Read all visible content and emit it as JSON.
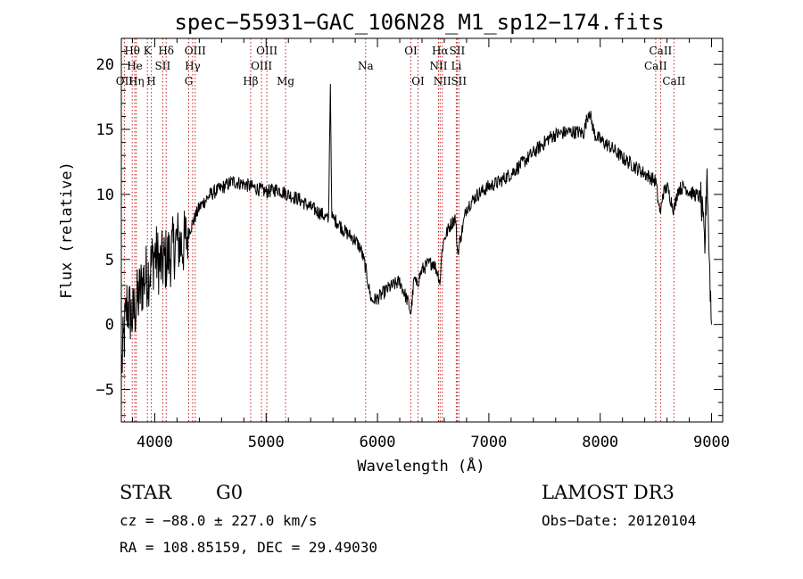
{
  "chart_data": {
    "type": "line",
    "title": "spec−55931−GAC_106N28_M1_sp12−174.fits",
    "xlabel": "Wavelength (Å)",
    "ylabel": "Flux (relative)",
    "xlim": [
      3700,
      9100
    ],
    "ylim": [
      -7.5,
      22
    ],
    "xticks": [
      4000,
      5000,
      6000,
      7000,
      8000,
      9000
    ],
    "yticks": [
      -5,
      0,
      5,
      10,
      15,
      20
    ],
    "grid": false,
    "series": [
      {
        "name": "flux",
        "x": [
          3700,
          3750,
          3800,
          3850,
          3900,
          3950,
          4000,
          4050,
          4100,
          4150,
          4200,
          4250,
          4300,
          4350,
          4400,
          4450,
          4500,
          4600,
          4700,
          4800,
          4900,
          5000,
          5100,
          5200,
          5300,
          5400,
          5500,
          5560,
          5577,
          5590,
          5650,
          5700,
          5800,
          5850,
          5890,
          5930,
          5950,
          6000,
          6100,
          6200,
          6280,
          6300,
          6330,
          6350,
          6400,
          6450,
          6500,
          6540,
          6563,
          6580,
          6600,
          6650,
          6700,
          6720,
          6800,
          6900,
          7000,
          7100,
          7200,
          7300,
          7400,
          7500,
          7550,
          7600,
          7700,
          7800,
          7850,
          7900,
          7950,
          8000,
          8100,
          8200,
          8300,
          8400,
          8500,
          8520,
          8542,
          8560,
          8600,
          8662,
          8700,
          8760,
          8800,
          8850,
          8900,
          8940,
          8960,
          8980,
          9000
        ],
        "y": [
          -3.5,
          1.5,
          0.5,
          2.0,
          3.5,
          4.0,
          5.5,
          4.5,
          5.0,
          5.5,
          6.5,
          6.0,
          7.0,
          8.0,
          9.0,
          9.5,
          10.0,
          10.5,
          11.0,
          10.8,
          10.5,
          10.2,
          10.4,
          10.0,
          9.6,
          9.0,
          8.5,
          8.0,
          18.5,
          8.2,
          7.8,
          7.2,
          6.5,
          5.8,
          4.5,
          2.5,
          1.8,
          2.0,
          2.8,
          3.3,
          1.6,
          0.8,
          3.6,
          3.0,
          4.2,
          4.6,
          4.8,
          4.0,
          3.2,
          5.8,
          6.6,
          7.6,
          8.2,
          5.5,
          9.0,
          10.0,
          10.6,
          11.0,
          11.6,
          12.4,
          13.2,
          14.0,
          14.4,
          14.6,
          14.8,
          14.8,
          14.7,
          16.5,
          14.6,
          14.2,
          13.6,
          12.8,
          12.2,
          11.6,
          11.0,
          9.5,
          8.5,
          10.0,
          10.6,
          8.8,
          10.4,
          10.6,
          10.2,
          10.0,
          9.8,
          6.0,
          12.0,
          5.0,
          0.0
        ]
      }
    ],
    "line_labels": [
      {
        "name": "Hθ",
        "wave": 3798,
        "row": 0
      },
      {
        "name": "OII",
        "wave": 3727,
        "row": 2
      },
      {
        "name": "He",
        "wave": 3820,
        "row": 1
      },
      {
        "name": "Hη",
        "wave": 3835,
        "row": 2
      },
      {
        "name": "K",
        "wave": 3934,
        "row": 0
      },
      {
        "name": "H",
        "wave": 3969,
        "row": 2
      },
      {
        "name": "SII",
        "wave": 4072,
        "row": 1
      },
      {
        "name": "Hδ",
        "wave": 4102,
        "row": 0
      },
      {
        "name": "G",
        "wave": 4305,
        "row": 2
      },
      {
        "name": "OIII",
        "wave": 4363,
        "row": 0
      },
      {
        "name": "Hγ",
        "wave": 4340,
        "row": 1
      },
      {
        "name": "Hβ",
        "wave": 4861,
        "row": 2
      },
      {
        "name": "OIII",
        "wave": 4959,
        "row": 1
      },
      {
        "name": "OIII",
        "wave": 5007,
        "row": 0
      },
      {
        "name": "Mg",
        "wave": 5175,
        "row": 2
      },
      {
        "name": "Na",
        "wave": 5894,
        "row": 1
      },
      {
        "name": "OI",
        "wave": 6300,
        "row": 0
      },
      {
        "name": "OI",
        "wave": 6364,
        "row": 2
      },
      {
        "name": "Hα",
        "wave": 6563,
        "row": 0
      },
      {
        "name": "NII",
        "wave": 6548,
        "row": 1
      },
      {
        "name": "NII",
        "wave": 6583,
        "row": 2
      },
      {
        "name": "SII",
        "wave": 6716,
        "row": 0
      },
      {
        "name": "Li",
        "wave": 6708,
        "row": 1
      },
      {
        "name": "SII",
        "wave": 6731,
        "row": 2
      },
      {
        "name": "CaII",
        "wave": 8542,
        "row": 0
      },
      {
        "name": "CaII",
        "wave": 8498,
        "row": 1
      },
      {
        "name": "CaII",
        "wave": 8662,
        "row": 2
      }
    ]
  },
  "info": {
    "object_class": "STAR",
    "subclass": "G0",
    "velocity": "cz = −88.0 ± 227.0 km/s",
    "coords": "RA = 108.85159, DEC =  29.49030",
    "survey": "LAMOST DR3",
    "obs_date": "Obs−Date: 20120104"
  }
}
